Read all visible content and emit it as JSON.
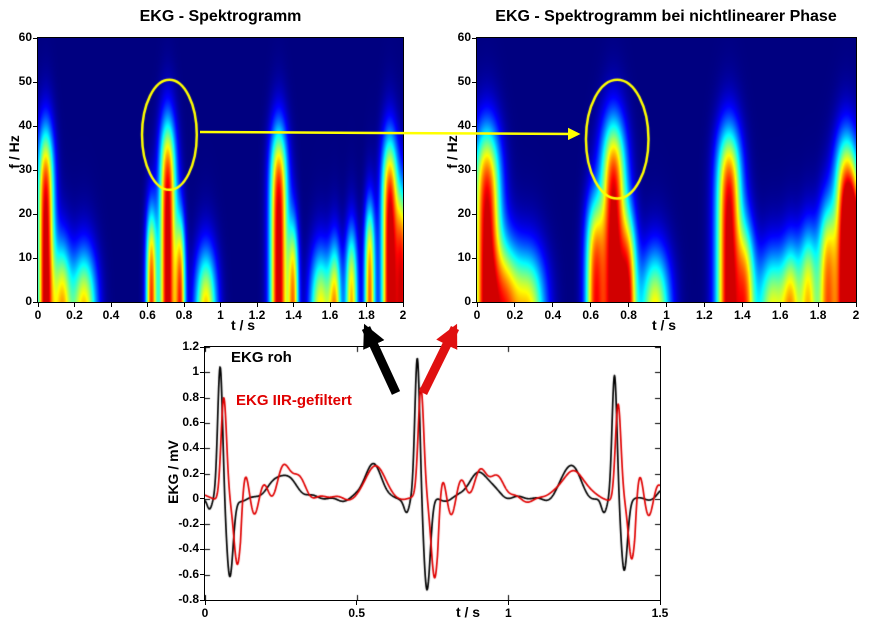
{
  "colors": {
    "background": "#ffffff",
    "spectrogram_background": "#000083",
    "trace_black": "#000000",
    "trace_red": "#e00000"
  },
  "annotations": {
    "ellipse_color": "#ffff00",
    "yellow_arrow_color": "#ffff00",
    "black_arrow_color": "#000000",
    "red_arrow_color": "#e01010"
  },
  "chart_data": [
    {
      "id": "spectrogram-left",
      "type": "heatmap",
      "title": "EKG - Spektrogramm",
      "xlabel": "t / s",
      "ylabel": "f / Hz",
      "xlim": [
        0,
        2
      ],
      "ylim": [
        0,
        60
      ],
      "xticks": [
        0,
        0.2,
        0.4,
        0.6,
        0.8,
        1,
        1.2,
        1.4,
        1.6,
        1.8,
        2
      ],
      "yticks": [
        0,
        10,
        20,
        30,
        40,
        50,
        60
      ],
      "colormap": "jet",
      "bursts": [
        {
          "t": 0.04,
          "fmax": 36,
          "w": 0.045,
          "a": 1.05
        },
        {
          "t": 0.13,
          "fmax": 10,
          "w": 0.05,
          "a": 0.8
        },
        {
          "t": 0.25,
          "fmax": 8,
          "w": 0.07,
          "a": 0.85
        },
        {
          "t": 0.62,
          "fmax": 18,
          "w": 0.03,
          "a": 0.9
        },
        {
          "t": 0.71,
          "fmax": 38,
          "w": 0.045,
          "a": 1.05
        },
        {
          "t": 0.78,
          "fmax": 16,
          "w": 0.028,
          "a": 0.85
        },
        {
          "t": 0.92,
          "fmax": 8,
          "w": 0.06,
          "a": 0.85
        },
        {
          "t": 1.32,
          "fmax": 36,
          "w": 0.048,
          "a": 1.05
        },
        {
          "t": 1.4,
          "fmax": 15,
          "w": 0.03,
          "a": 0.8
        },
        {
          "t": 1.55,
          "fmax": 8,
          "w": 0.06,
          "a": 0.8
        },
        {
          "t": 1.63,
          "fmax": 10,
          "w": 0.035,
          "a": 0.75
        },
        {
          "t": 1.72,
          "fmax": 13,
          "w": 0.035,
          "a": 0.8
        },
        {
          "t": 1.82,
          "fmax": 19,
          "w": 0.03,
          "a": 0.85
        },
        {
          "t": 1.93,
          "fmax": 34,
          "w": 0.045,
          "a": 1.05
        },
        {
          "t": 2.0,
          "fmax": 22,
          "w": 0.04,
          "a": 0.9
        }
      ],
      "highlight_ellipse": {
        "t": 0.72,
        "f": 38,
        "rt": 0.15,
        "rf": 12.5
      }
    },
    {
      "id": "spectrogram-right",
      "type": "heatmap",
      "title": "EKG - Spektrogramm  bei nichtlinearer Phase",
      "xlabel": "t / s",
      "ylabel": "f / Hz",
      "xlim": [
        0,
        2
      ],
      "ylim": [
        0,
        60
      ],
      "xticks": [
        0,
        0.2,
        0.4,
        0.6,
        0.8,
        1,
        1.2,
        1.4,
        1.6,
        1.8,
        2
      ],
      "yticks": [
        0,
        10,
        20,
        30,
        40,
        50,
        60
      ],
      "colormap": "jet",
      "bursts": [
        {
          "t": 0.05,
          "fmax": 36,
          "w": 0.07,
          "a": 1.05
        },
        {
          "t": 0.15,
          "fmax": 10,
          "w": 0.07,
          "a": 0.75
        },
        {
          "t": 0.27,
          "fmax": 8,
          "w": 0.09,
          "a": 0.8
        },
        {
          "t": 0.62,
          "fmax": 20,
          "w": 0.05,
          "a": 0.85
        },
        {
          "t": 0.72,
          "fmax": 38,
          "w": 0.065,
          "a": 1.05
        },
        {
          "t": 0.8,
          "fmax": 16,
          "w": 0.045,
          "a": 0.8
        },
        {
          "t": 0.94,
          "fmax": 8,
          "w": 0.08,
          "a": 0.8
        },
        {
          "t": 1.33,
          "fmax": 36,
          "w": 0.065,
          "a": 1.05
        },
        {
          "t": 1.42,
          "fmax": 14,
          "w": 0.05,
          "a": 0.75
        },
        {
          "t": 1.56,
          "fmax": 8,
          "w": 0.08,
          "a": 0.75
        },
        {
          "t": 1.66,
          "fmax": 10,
          "w": 0.05,
          "a": 0.7
        },
        {
          "t": 1.75,
          "fmax": 13,
          "w": 0.05,
          "a": 0.75
        },
        {
          "t": 1.85,
          "fmax": 19,
          "w": 0.05,
          "a": 0.8
        },
        {
          "t": 1.95,
          "fmax": 34,
          "w": 0.06,
          "a": 1.05
        },
        {
          "t": 2.0,
          "fmax": 24,
          "w": 0.05,
          "a": 0.9
        }
      ],
      "highlight_ellipse": {
        "t": 0.74,
        "f": 37,
        "rt": 0.165,
        "rf": 13.5
      }
    },
    {
      "id": "ekg-time-series",
      "type": "line",
      "title": "",
      "xlabel": "t / s",
      "ylabel": "EKG / mV",
      "xlim": [
        0,
        1.5
      ],
      "ylim": [
        -0.8,
        1.2
      ],
      "xticks": [
        0,
        0.5,
        1,
        1.5
      ],
      "yticks": [
        -0.8,
        -0.6,
        -0.4,
        -0.2,
        0,
        0.2,
        0.4,
        0.6,
        0.8,
        1,
        1.2
      ],
      "beats": [
        {
          "t": 0.05,
          "r_amp": 1.05,
          "s_amp": -0.62
        },
        {
          "t": 0.7,
          "r_amp": 1.1,
          "s_amp": -0.72
        },
        {
          "t": 1.35,
          "r_amp": 0.98,
          "s_amp": -0.58
        }
      ],
      "series": [
        {
          "name": "EKG roh",
          "color": "#000000",
          "kind": "raw",
          "p_amp": 0.26,
          "t_amp": 0.2
        },
        {
          "name": "EKG IIR-gefiltert",
          "color": "#e00000",
          "kind": "iir_filtered",
          "r_scale": 0.78,
          "delay_s": 0.012,
          "ringing": {
            "freq_hz": 16,
            "amp": 0.22,
            "decay_s": 0.09
          }
        }
      ]
    }
  ]
}
